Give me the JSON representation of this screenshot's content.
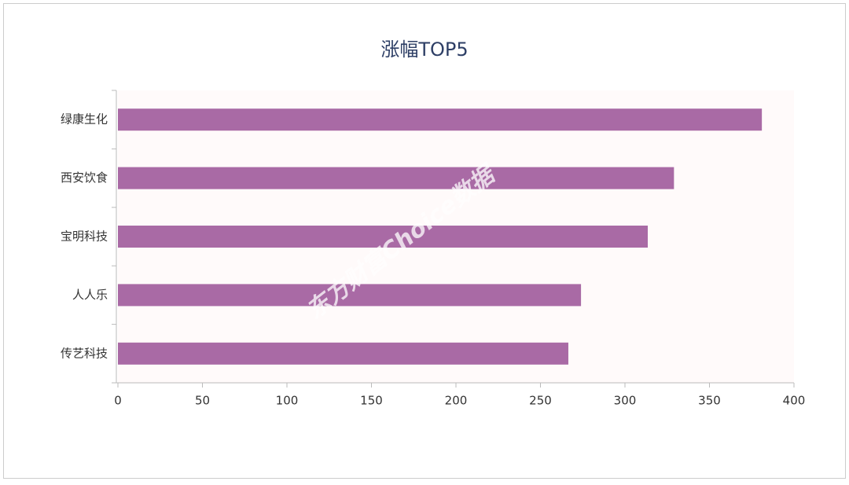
{
  "chart_data": {
    "type": "hbar",
    "title": "涨幅TOP5",
    "categories": [
      "绿康生化",
      "西安饮食",
      "宝明科技",
      "人人乐",
      "传艺科技"
    ],
    "values": [
      381,
      329,
      313.5,
      274,
      266.5
    ],
    "color": "#a96aa5",
    "xlim": [
      0,
      400
    ],
    "xticks": [
      0,
      50,
      100,
      150,
      200,
      250,
      300,
      350,
      400
    ],
    "watermark": "东方财富Choice数据"
  }
}
